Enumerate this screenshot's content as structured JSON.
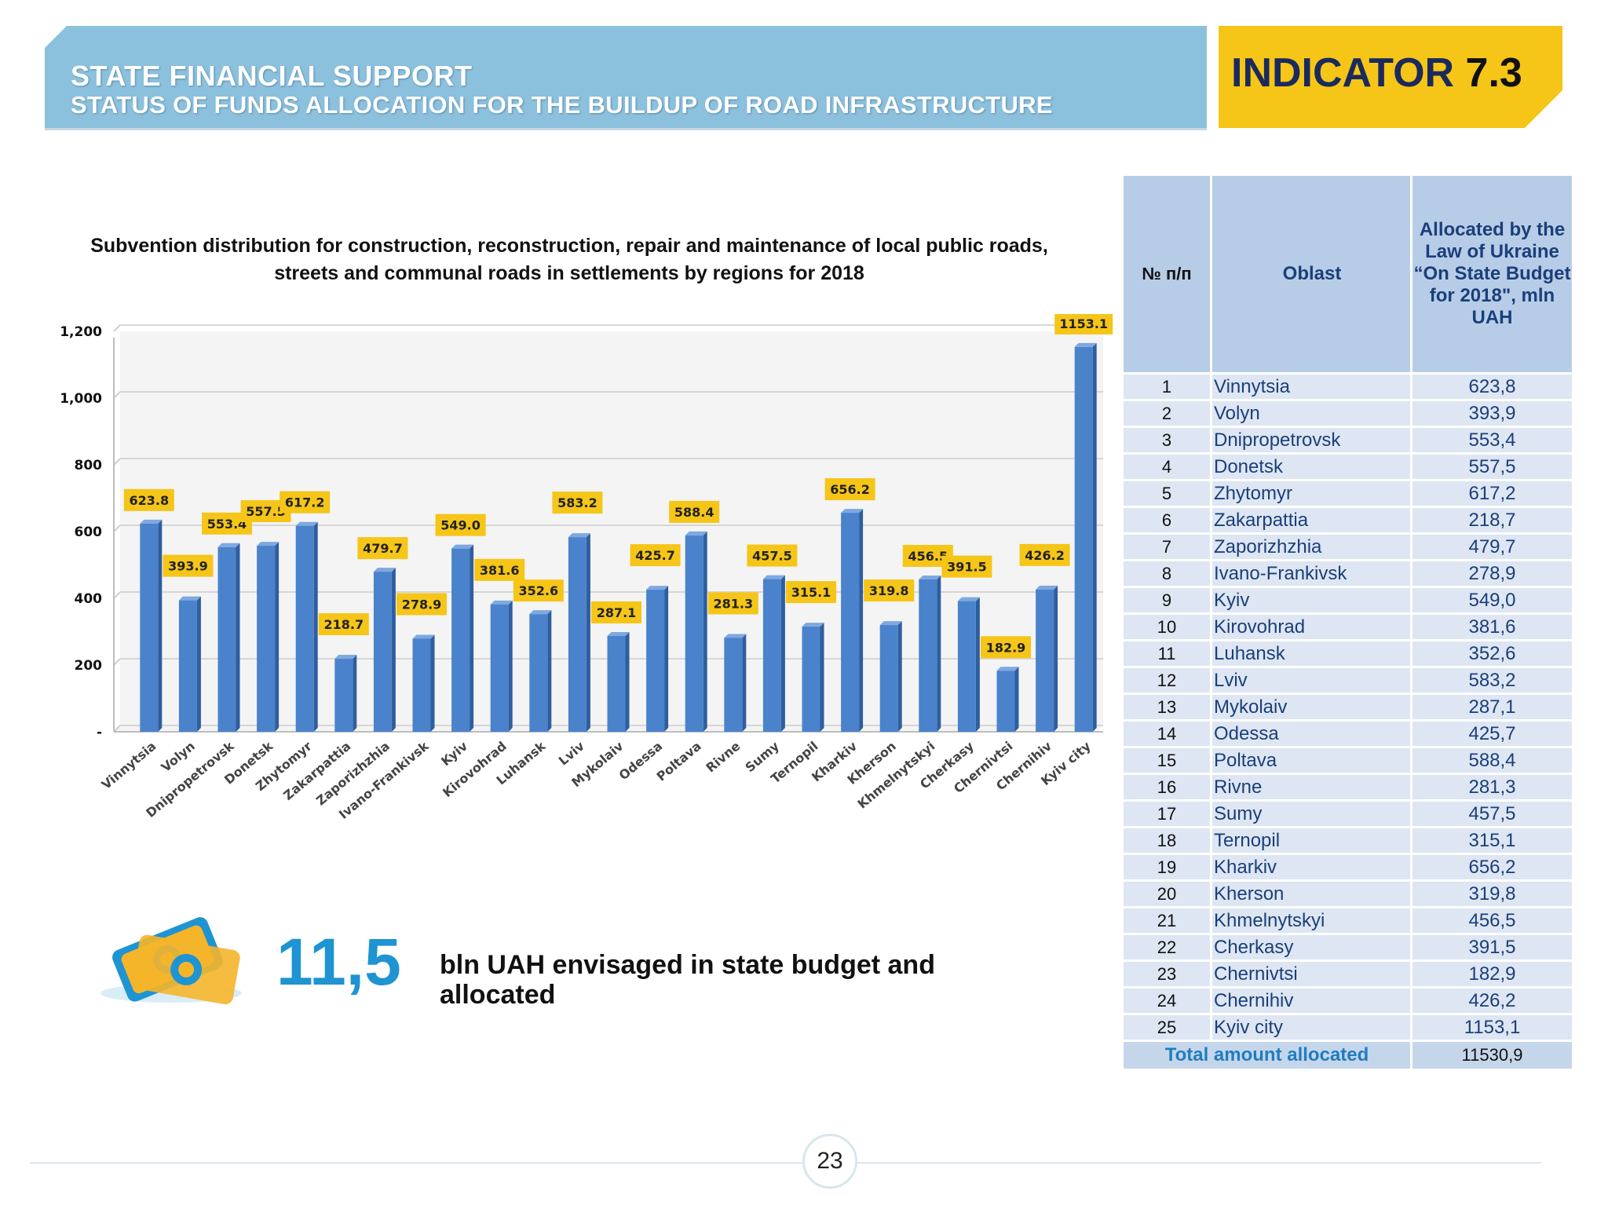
{
  "header": {
    "title": "STATE FINANCIAL SUPPORT",
    "subtitle": "STATUS OF FUNDS ALLOCATION FOR THE BUILDUP OF ROAD INFRASTRUCTURE",
    "indicator_label": "INDICATOR",
    "indicator_number": "7.3"
  },
  "chart_data": {
    "type": "bar",
    "title_line1": "Subvention distribution for construction, reconstruction, repair and maintenance of local public roads,",
    "title_line2": "streets and communal roads in settlements by regions for 2018",
    "categories": [
      "Vinnytsia",
      "Volyn",
      "Dnipropetrovsk",
      "Donetsk",
      "Zhytomyr",
      "Zakarpattia",
      "Zaporizhzhia",
      "Ivano-Frankivsk",
      "Kyiv",
      "Kirovohrad",
      "Luhansk",
      "Lviv",
      "Mykolaiv",
      "Odessa",
      "Poltava",
      "Rivne",
      "Sumy",
      "Ternopil",
      "Kharkiv",
      "Kherson",
      "Khmelnytskyi",
      "Cherkasy",
      "Chernivtsi",
      "Chernihiv",
      "Kyiv city"
    ],
    "values": [
      623.8,
      393.9,
      553.4,
      557.5,
      617.2,
      218.7,
      479.7,
      278.9,
      549.0,
      381.6,
      352.6,
      583.2,
      287.1,
      425.7,
      588.4,
      281.3,
      457.5,
      315.1,
      656.2,
      319.8,
      456.5,
      391.5,
      182.9,
      426.2,
      1153.1
    ],
    "data_labels": [
      "623.8",
      "393.9",
      "553.4",
      "557.5",
      "617.2",
      "218.7",
      "479.7",
      "278.9",
      "549.0",
      "381.6",
      "352.6",
      "583.2",
      "287.1",
      "425.7",
      "588.4",
      "281.3",
      "457.5",
      "315.1",
      "656.2",
      "319.8",
      "456.5",
      "391.5",
      "182.9",
      "426.2",
      "1153.1"
    ],
    "y_ticks": [
      "-",
      "200",
      "400",
      "600",
      "800",
      "1,000",
      "1,200"
    ],
    "ylim": [
      0,
      1200
    ],
    "grid": true,
    "bar_color": "#4a82cc",
    "label_color": "#f5c518"
  },
  "table": {
    "headers": [
      "№ п/п",
      "Oblast",
      "Allocated by the Law of Ukraine “On State Budget for 2018\", mln UAH"
    ],
    "rows": [
      {
        "no": "1",
        "oblast": "Vinnytsia",
        "value": "623,8"
      },
      {
        "no": "2",
        "oblast": "Volyn",
        "value": "393,9"
      },
      {
        "no": "3",
        "oblast": "Dnipropetrovsk",
        "value": "553,4"
      },
      {
        "no": "4",
        "oblast": "Donetsk",
        "value": "557,5"
      },
      {
        "no": "5",
        "oblast": "Zhytomyr",
        "value": "617,2"
      },
      {
        "no": "6",
        "oblast": "Zakarpattia",
        "value": "218,7"
      },
      {
        "no": "7",
        "oblast": "Zaporizhzhia",
        "value": "479,7"
      },
      {
        "no": "8",
        "oblast": "Ivano-Frankivsk",
        "value": "278,9"
      },
      {
        "no": "9",
        "oblast": "Kyiv",
        "value": "549,0"
      },
      {
        "no": "10",
        "oblast": "Kirovohrad",
        "value": "381,6"
      },
      {
        "no": "11",
        "oblast": "Luhansk",
        "value": "352,6"
      },
      {
        "no": "12",
        "oblast": "Lviv",
        "value": "583,2"
      },
      {
        "no": "13",
        "oblast": "Mykolaiv",
        "value": "287,1"
      },
      {
        "no": "14",
        "oblast": "Odessa",
        "value": "425,7"
      },
      {
        "no": "15",
        "oblast": "Poltava",
        "value": "588,4"
      },
      {
        "no": "16",
        "oblast": "Rivne",
        "value": "281,3"
      },
      {
        "no": "17",
        "oblast": "Sumy",
        "value": "457,5"
      },
      {
        "no": "18",
        "oblast": "Ternopil",
        "value": "315,1"
      },
      {
        "no": "19",
        "oblast": "Kharkiv",
        "value": "656,2"
      },
      {
        "no": "20",
        "oblast": "Kherson",
        "value": "319,8"
      },
      {
        "no": "21",
        "oblast": "Khmelnytskyi",
        "value": "456,5"
      },
      {
        "no": "22",
        "oblast": "Cherkasy",
        "value": "391,5"
      },
      {
        "no": "23",
        "oblast": "Chernivtsi",
        "value": "182,9"
      },
      {
        "no": "24",
        "oblast": "Chernihiv",
        "value": "426,2"
      },
      {
        "no": "25",
        "oblast": "Kyiv city",
        "value": "1153,1"
      }
    ],
    "total_label": "Total amount allocated",
    "total_value": "11530,9"
  },
  "summary": {
    "big_number": "11,5",
    "text": "bln UAH envisaged in state budget and allocated"
  },
  "page_number": "23",
  "icon": "money-banknotes-icon"
}
